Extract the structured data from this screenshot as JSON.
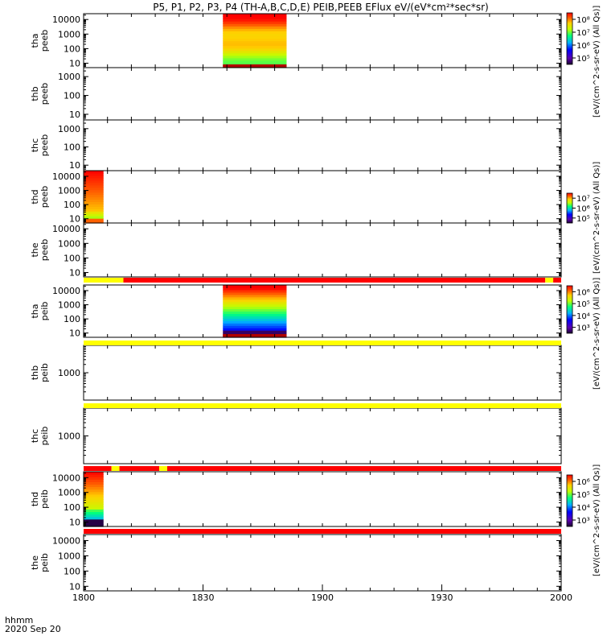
{
  "title": "P5, P1, P2, P3, P4 (TH-A,B,C,D,E) PEIB,PEEB EFlux eV/(eV*cm²*sec*sr)",
  "time_label": "hhmm",
  "date_label": "2020 Sep 20",
  "colors": {
    "flag_red": "#ff0000",
    "flag_yellow": "#ffff00",
    "frame": "#000000"
  },
  "chart_data": {
    "type": "heatmap",
    "x_axis": {
      "range": [
        "1800",
        "2000"
      ],
      "tick_labels": [
        "1800",
        "1830",
        "1900",
        "1930",
        "2000"
      ]
    },
    "colorbars": [
      {
        "id": "cb-a",
        "label": "[eV/(cm^2-s-sr-eV) (All Qs)]",
        "tick_labels": [
          "10⁵",
          "10⁶",
          "10⁷",
          "10⁸"
        ]
      },
      {
        "id": "cb-d",
        "label": "[eV/(cm^2-s-sr-eV) (All Qs)]",
        "tick_labels": [
          "10⁵",
          "10⁶",
          "10⁷"
        ]
      },
      {
        "id": "cb-ion",
        "label": "[eV/(cm^2-s-sr-eV) (All Qs)]",
        "tick_labels": [
          "10³",
          "10⁴",
          "10⁵",
          "10⁶"
        ]
      },
      {
        "id": "cb-ion-d",
        "label": "[eV/(cm^2-s-sr-eV) (All Qs)]",
        "tick_labels": [
          "10³",
          "10⁴",
          "10⁵",
          "10⁶"
        ]
      }
    ],
    "panels": [
      {
        "probe": "tha",
        "product": "peeb",
        "y_ticks": [
          "10",
          "100",
          "1000",
          "10000"
        ],
        "y_range_ev": [
          5,
          25000
        ],
        "spectra": [
          {
            "t_start": "1835",
            "t_end": "1851",
            "style": "electron_high"
          }
        ]
      },
      {
        "probe": "thb",
        "product": "peeb",
        "y_ticks": [
          "10",
          "100",
          "1000"
        ],
        "y_range_ev": [
          5,
          3000
        ],
        "spectra": []
      },
      {
        "probe": "thc",
        "product": "peeb",
        "y_ticks": [
          "10",
          "100",
          "1000"
        ],
        "y_range_ev": [
          5,
          3000
        ],
        "spectra": []
      },
      {
        "probe": "thd",
        "product": "peeb",
        "y_ticks": [
          "10",
          "100",
          "1000",
          "10000"
        ],
        "y_range_ev": [
          5,
          25000
        ],
        "spectra": [
          {
            "t_start": "1800",
            "t_end": "1805",
            "style": "electron_full"
          }
        ]
      },
      {
        "probe": "the",
        "product": "peeb",
        "y_ticks": [
          "10",
          "100",
          "1000",
          "10000"
        ],
        "y_range_ev": [
          5,
          25000
        ],
        "spectra": []
      },
      {
        "probe": "tha",
        "product": "peib",
        "y_ticks": [
          "10",
          "100",
          "1000",
          "10000"
        ],
        "y_range_ev": [
          5,
          25000
        ],
        "flag_bar": [
          {
            "from": "1800",
            "to": "1810",
            "color": "yellow"
          },
          {
            "from": "1810",
            "to": "1956",
            "color": "red"
          },
          {
            "from": "1956",
            "to": "1958",
            "color": "yellow"
          },
          {
            "from": "1958",
            "to": "2000",
            "color": "red"
          }
        ],
        "spectra": [
          {
            "t_start": "1835",
            "t_end": "1851",
            "style": "ion_high"
          }
        ]
      },
      {
        "probe": "thb",
        "product": "peib",
        "y_ticks": [
          "1000"
        ],
        "y_range_ev": [
          100,
          10000
        ],
        "flag_bar": [
          {
            "from": "1800",
            "to": "2000",
            "color": "yellow"
          }
        ],
        "spectra": []
      },
      {
        "probe": "thc",
        "product": "peib",
        "y_ticks": [
          "1000"
        ],
        "y_range_ev": [
          100,
          10000
        ],
        "flag_bar": [
          {
            "from": "1800",
            "to": "2000",
            "color": "yellow"
          }
        ],
        "spectra": []
      },
      {
        "probe": "thd",
        "product": "peib",
        "y_ticks": [
          "10",
          "100",
          "1000",
          "10000"
        ],
        "y_range_ev": [
          5,
          25000
        ],
        "flag_bar": [
          {
            "from": "1800",
            "to": "1807",
            "color": "red"
          },
          {
            "from": "1807",
            "to": "1809",
            "color": "yellow"
          },
          {
            "from": "1809",
            "to": "1819",
            "color": "red"
          },
          {
            "from": "1819",
            "to": "1821",
            "color": "yellow"
          },
          {
            "from": "1821",
            "to": "2000",
            "color": "red"
          }
        ],
        "spectra": [
          {
            "t_start": "1800",
            "t_end": "1805",
            "style": "ion_full"
          }
        ]
      },
      {
        "probe": "the",
        "product": "peib",
        "y_ticks": [
          "10",
          "100",
          "1000",
          "10000"
        ],
        "y_range_ev": [
          5,
          25000
        ],
        "flag_bar": [
          {
            "from": "1800",
            "to": "2000",
            "color": "red"
          }
        ],
        "spectra": []
      }
    ]
  }
}
